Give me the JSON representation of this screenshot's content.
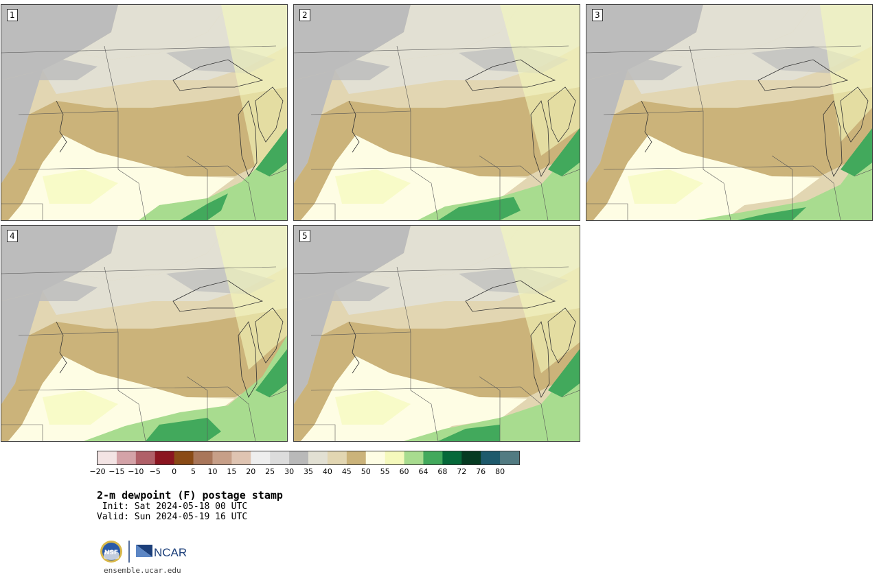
{
  "panels": [
    {
      "label": "1"
    },
    {
      "label": "2"
    },
    {
      "label": "3"
    },
    {
      "label": "4"
    },
    {
      "label": "5"
    }
  ],
  "colorbar": {
    "ticks": [
      "-20",
      "-15",
      "-10",
      "-5",
      "0",
      "5",
      "10",
      "15",
      "20",
      "25",
      "30",
      "35",
      "40",
      "45",
      "50",
      "55",
      "60",
      "64",
      "68",
      "72",
      "76",
      "80"
    ],
    "colors": [
      "#f3e4e4",
      "#d4a3a8",
      "#b06068",
      "#8b1520",
      "#8a4b16",
      "#a9765a",
      "#c79f88",
      "#dfc4b2",
      "#eeeeee",
      "#dcdcdc",
      "#b9b9b9",
      "#e2e0d3",
      "#e2d6b2",
      "#cbb37a",
      "#fefde4",
      "#f5f9bc",
      "#a8dc8f",
      "#42a95c",
      "#06693a",
      "#063b22",
      "#1e5a6c",
      "#527b82"
    ]
  },
  "map_colors": {
    "gray_dark": "#bcbcbc",
    "gray_light": "#e2e0d3",
    "tan_light": "#e2d6b2",
    "tan": "#cbb37a",
    "cream": "#fefde4",
    "yellow_green": "#f5f9bc",
    "light_green": "#a8dc8f",
    "green": "#42a95c",
    "dark_green": "#06693a"
  },
  "title": "2-m dewpoint (F) postage stamp",
  "init": " Init: Sat 2024-05-18 00 UTC",
  "valid": "Valid: Sun 2024-05-19 16 UTC",
  "logo": {
    "left": "NSF",
    "right": "NCAR"
  },
  "website": "ensemble.ucar.edu"
}
